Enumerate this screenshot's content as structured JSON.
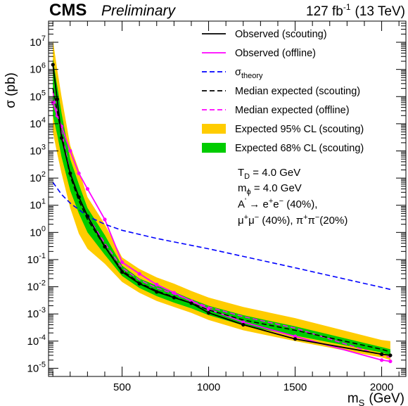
{
  "header": {
    "experiment": "CMS",
    "status": "Preliminary",
    "lumi": "127 fb",
    "lumi_exp": "-1",
    "energy": "(13 TeV)"
  },
  "chart_data": {
    "type": "line",
    "xlabel": {
      "main": "m",
      "sub": "S",
      "unit": "(GeV)"
    },
    "ylabel": "σ (pb)",
    "xlim": [
      75,
      2140
    ],
    "ylim": [
      5e-06,
      60000000
    ],
    "yscale": "log",
    "x_ticks": [
      500,
      1000,
      1500,
      2000
    ],
    "y_ticks": [
      {
        "value": 1e-05,
        "base": "10",
        "exp": "-5"
      },
      {
        "value": 0.0001,
        "base": "10",
        "exp": "-4"
      },
      {
        "value": 0.001,
        "base": "10",
        "exp": "-3"
      },
      {
        "value": 0.01,
        "base": "10",
        "exp": "-2"
      },
      {
        "value": 0.1,
        "base": "10",
        "exp": "-1"
      },
      {
        "value": 1,
        "base": "10",
        "exp": "0"
      },
      {
        "value": 10,
        "base": "10",
        "exp": "1"
      },
      {
        "value": 100,
        "base": "10",
        "exp": "2"
      },
      {
        "value": 1000,
        "base": "10",
        "exp": "3"
      },
      {
        "value": 10000,
        "base": "10",
        "exp": "4"
      },
      {
        "value": 100000,
        "base": "10",
        "exp": "5"
      },
      {
        "value": 1000000,
        "base": "10",
        "exp": "6"
      },
      {
        "value": 10000000,
        "base": "10",
        "exp": "7"
      }
    ],
    "band95": {
      "name": "Expected 95% CL (scouting)",
      "color": "#ffcc00",
      "x": [
        100,
        125,
        150,
        200,
        250,
        300,
        400,
        500,
        600,
        700,
        800,
        900,
        1000,
        1200,
        1500,
        2000,
        2050
      ],
      "lo": [
        5000,
        800,
        150,
        8,
        0.9,
        0.25,
        0.07,
        0.015,
        0.006,
        0.003,
        0.0018,
        0.0011,
        0.0006,
        0.00025,
        0.0001,
        2.5e-05,
        2e-05
      ],
      "hi": [
        12000000,
        1000000,
        100000,
        1600,
        200,
        20,
        2,
        0.12,
        0.045,
        0.022,
        0.013,
        0.007,
        0.004,
        0.0018,
        0.0007,
        0.00011,
        0.0001
      ]
    },
    "band68": {
      "name": "Expected 68% CL (scouting)",
      "color": "#00cc00",
      "x": [
        100,
        125,
        150,
        200,
        250,
        300,
        400,
        500,
        600,
        700,
        800,
        900,
        1000,
        1200,
        1500,
        2000,
        2050
      ],
      "lo": [
        20000,
        4000,
        600,
        35,
        5,
        1,
        0.15,
        0.025,
        0.009,
        0.0045,
        0.0026,
        0.0016,
        0.0009,
        0.00038,
        0.00016,
        3.8e-05,
        3e-05
      ],
      "hi": [
        2500000,
        250000,
        25000,
        500,
        60,
        8,
        0.8,
        0.06,
        0.02,
        0.011,
        0.0065,
        0.0035,
        0.002,
        0.0009,
        0.00035,
        6e-05,
        5e-05
      ]
    },
    "series": [
      {
        "name": "Observed (scouting)",
        "color": "#000000",
        "dash": "none",
        "markers": true,
        "x": [
          100,
          125,
          150,
          200,
          250,
          300,
          400,
          500,
          600,
          700,
          800,
          900,
          1000,
          1200,
          1500,
          2000,
          2050
        ],
        "y": [
          1500000,
          80000,
          3000,
          150,
          20,
          4,
          0.3,
          0.035,
          0.013,
          0.0065,
          0.004,
          0.0025,
          0.0011,
          0.0004,
          0.00012,
          3.3e-05,
          3e-05
        ]
      },
      {
        "name": "Observed (offline)",
        "color": "#ff00ff",
        "dash": "none",
        "markers": true,
        "x": [
          100,
          125,
          150,
          200,
          250,
          300,
          400,
          500,
          600,
          700,
          800,
          900,
          1000,
          1200,
          1500,
          2000,
          2050
        ],
        "y": [
          60000,
          20000,
          8000,
          1000,
          150,
          40,
          3,
          0.08,
          0.03,
          0.012,
          0.006,
          0.003,
          0.0015,
          0.0005,
          0.00015,
          2e-05,
          1.8e-05
        ]
      },
      {
        "name": "σ",
        "name_sub": "theory",
        "color": "#0000ff",
        "dash": "7,4",
        "markers": false,
        "x": [
          100,
          150,
          200,
          300,
          400,
          500,
          700,
          1000,
          1500,
          2000,
          2050
        ],
        "y": [
          70,
          25,
          12,
          4,
          2,
          1.2,
          0.6,
          0.25,
          0.05,
          0.0095,
          0.008
        ]
      },
      {
        "name": "Median expected (scouting)",
        "color": "#000000",
        "dash": "7,4",
        "markers": false,
        "x": [
          100,
          125,
          150,
          200,
          250,
          300,
          400,
          500,
          600,
          700,
          800,
          900,
          1000,
          1200,
          1500,
          2000,
          2050
        ],
        "y": [
          200000,
          30000,
          4000,
          120,
          15,
          3,
          0.3,
          0.04,
          0.014,
          0.007,
          0.0042,
          0.0025,
          0.0014,
          0.0006,
          0.00025,
          5e-05,
          4e-05
        ]
      },
      {
        "name": "Median expected (offline)",
        "color": "#ff00ff",
        "dash": "7,4",
        "markers": false,
        "x": [
          100,
          125,
          150,
          200,
          250,
          300,
          400,
          500,
          600,
          700,
          800,
          900,
          1000,
          1200,
          1500,
          2000,
          2050
        ],
        "y": [
          150000,
          25000,
          5000,
          150,
          20,
          4,
          0.4,
          0.05,
          0.018,
          0.009,
          0.0055,
          0.003,
          0.0018,
          0.0008,
          0.0003,
          3e-05,
          2.5e-05
        ]
      }
    ],
    "legend": {
      "placement": "top-right",
      "items": [
        {
          "label": "Observed (scouting)",
          "kind": "line",
          "color": "#000000",
          "dash": "none"
        },
        {
          "label": "Observed (offline)",
          "kind": "line",
          "color": "#ff00ff",
          "dash": "none"
        },
        {
          "label": "σ",
          "sub": "theory",
          "kind": "line",
          "color": "#0000ff",
          "dash": "7,4"
        },
        {
          "label": "Median expected (scouting)",
          "kind": "line",
          "color": "#000000",
          "dash": "7,4"
        },
        {
          "label": "Median expected (offline)",
          "kind": "line",
          "color": "#ff00ff",
          "dash": "7,4"
        },
        {
          "label": "Expected 95% CL (scouting)",
          "kind": "box",
          "color": "#ffcc00"
        },
        {
          "label": "Expected 68% CL (scouting)",
          "kind": "box",
          "color": "#00cc00"
        }
      ]
    },
    "annotations": {
      "td": {
        "sym": "T",
        "sub": "D",
        "rest": " = 4.0 GeV"
      },
      "mphi": {
        "sym": "m",
        "sub": "ϕ",
        "rest": " = 4.0 GeV"
      },
      "decay1": {
        "a": "A",
        "a_sup": "'",
        "arrow": " → e",
        "e1": "+",
        "e_mid": "e",
        "e2": "−",
        "frac": " (40%),"
      },
      "decay2": {
        "mu": "μ",
        "mu1": "+",
        "mu_mid": "μ",
        "mu2": "−",
        "frac1": " (40%), ",
        "pi": "π",
        "pi1": "+",
        "pi_mid": "π",
        "pi2": "−",
        "frac2": "(20%)"
      }
    }
  }
}
